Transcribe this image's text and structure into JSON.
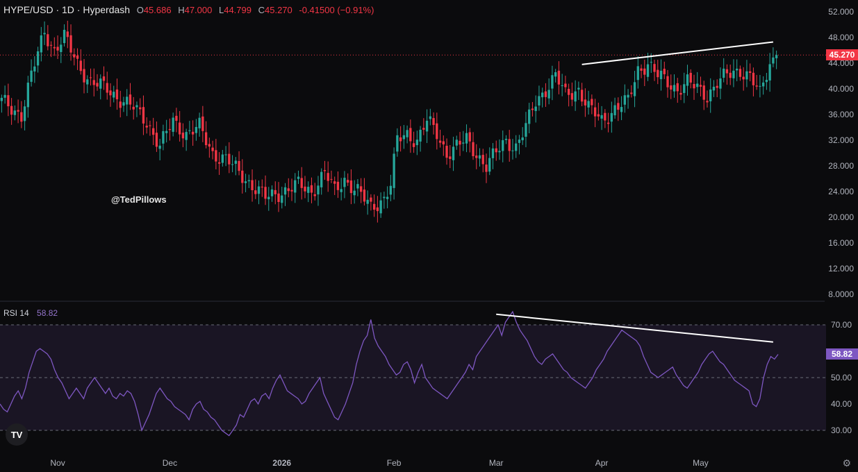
{
  "header": {
    "symbol": "HYPE/USD · 1D · Hyperdash",
    "o_label": "O",
    "o_value": "45.686",
    "h_label": "H",
    "h_value": "47.000",
    "l_label": "L",
    "l_value": "44.799",
    "c_label": "C",
    "c_value": "45.270",
    "change": "-0.41500 (−0.91%)"
  },
  "watermark": "@TedPillows",
  "rsi": {
    "label": "RSI 14",
    "value": "58.82"
  },
  "price_tag": "45.270",
  "rsi_tag": "58.82",
  "logo_text": "TV",
  "colors": {
    "background": "#0b0b0d",
    "up": "#26a69a",
    "down": "#f23645",
    "rsi_line": "#7e57c2",
    "rsi_band": "#1a1524",
    "trendline": "#ffffff"
  },
  "chart_data": [
    {
      "type": "candlestick",
      "title": "HYPE/USD · 1D · Hyperdash",
      "y_axis_ticks": [
        "52.000",
        "48.000",
        "44.000",
        "40.000",
        "36.000",
        "32.000",
        "28.000",
        "24.000",
        "20.000",
        "16.000",
        "12.000",
        "8.0000"
      ],
      "ylim": [
        7,
        53
      ],
      "x_axis_labels": [
        "Nov",
        "Dec",
        "2026",
        "Feb",
        "Mar",
        "Apr",
        "May"
      ],
      "last_price": 45.27,
      "close_path": [
        [
          0,
          38
        ],
        [
          6,
          36
        ],
        [
          9,
          42
        ],
        [
          13,
          49
        ],
        [
          16,
          46
        ],
        [
          19,
          48
        ],
        [
          23,
          44
        ],
        [
          27,
          41
        ],
        [
          32,
          40
        ],
        [
          37,
          38
        ],
        [
          40,
          37
        ],
        [
          44,
          35
        ],
        [
          48,
          31
        ],
        [
          52,
          35
        ],
        [
          56,
          33
        ],
        [
          60,
          34
        ],
        [
          64,
          30
        ],
        [
          68,
          29
        ],
        [
          72,
          27
        ],
        [
          76,
          25
        ],
        [
          80,
          23
        ],
        [
          85,
          24
        ],
        [
          90,
          25
        ],
        [
          94,
          24
        ],
        [
          98,
          27
        ],
        [
          101,
          24
        ],
        [
          104,
          26
        ],
        [
          108,
          24
        ],
        [
          112,
          21.5
        ],
        [
          116,
          23
        ],
        [
          118,
          25
        ],
        [
          120,
          32
        ],
        [
          123,
          33
        ],
        [
          126,
          32
        ],
        [
          129,
          35
        ],
        [
          132,
          33
        ],
        [
          135,
          30
        ],
        [
          138,
          31
        ],
        [
          141,
          32
        ],
        [
          144,
          30
        ],
        [
          147,
          28
        ],
        [
          150,
          30
        ],
        [
          153,
          32
        ],
        [
          156,
          31
        ],
        [
          159,
          34
        ],
        [
          162,
          38
        ],
        [
          165,
          40
        ],
        [
          168,
          42
        ],
        [
          171,
          39
        ],
        [
          175,
          40
        ],
        [
          178,
          37
        ],
        [
          182,
          35
        ],
        [
          186,
          37
        ],
        [
          190,
          38
        ],
        [
          193,
          43
        ],
        [
          196,
          44
        ],
        [
          199,
          42
        ],
        [
          202,
          41
        ],
        [
          205,
          40
        ],
        [
          208,
          41
        ],
        [
          211,
          40
        ],
        [
          214,
          39
        ],
        [
          217,
          41
        ],
        [
          220,
          42
        ],
        [
          224,
          43
        ],
        [
          227,
          42
        ],
        [
          230,
          39
        ],
        [
          233,
          44
        ],
        [
          235,
          45.27
        ]
      ],
      "annotations": [
        {
          "type": "trendline",
          "from": [
            176,
            43.8
          ],
          "to": [
            234,
            47.3
          ]
        }
      ]
    },
    {
      "type": "line",
      "title": "RSI 14",
      "y_axis_ticks": [
        "70.00",
        "50.00",
        "40.00",
        "30.00"
      ],
      "ylim": [
        27,
        77
      ],
      "bands": [
        30,
        50,
        70
      ],
      "last_value": 58.82,
      "series": [
        {
          "values": [
            40,
            38,
            37,
            40,
            43,
            45,
            42,
            46,
            52,
            56,
            60,
            61,
            60,
            59,
            57,
            53,
            50,
            48,
            45,
            42,
            44,
            46,
            44,
            42,
            46,
            48,
            50,
            48,
            46,
            44,
            46,
            43,
            42,
            44,
            43,
            45,
            44,
            41,
            36,
            30,
            33,
            36,
            40,
            44,
            46,
            44,
            42,
            41,
            39,
            38,
            37,
            36,
            34,
            38,
            40,
            41,
            38,
            37,
            35,
            34,
            32,
            30,
            29,
            28,
            30,
            32,
            36,
            35,
            38,
            41,
            42,
            40,
            43,
            44,
            42,
            46,
            49,
            51,
            48,
            45,
            44,
            43,
            42,
            40,
            41,
            44,
            46,
            48,
            50,
            44,
            41,
            38,
            35,
            34,
            37,
            40,
            44,
            48,
            55,
            60,
            64,
            66,
            72,
            65,
            62,
            60,
            58,
            55,
            53,
            51,
            52,
            55,
            56,
            53,
            48,
            52,
            55,
            50,
            48,
            46,
            45,
            44,
            43,
            42,
            44,
            46,
            48,
            50,
            52,
            55,
            53,
            58,
            60,
            62,
            64,
            66,
            68,
            70,
            66,
            71,
            73,
            75,
            71,
            68,
            66,
            64,
            61,
            58,
            56,
            55,
            57,
            58,
            59,
            57,
            55,
            53,
            52,
            50,
            49,
            48,
            47,
            46,
            48,
            50,
            53,
            55,
            57,
            60,
            62,
            64,
            66,
            68,
            67,
            66,
            65,
            64,
            62,
            58,
            55,
            52,
            51,
            50,
            51,
            52,
            53,
            54,
            51,
            49,
            47,
            46,
            48,
            50,
            52,
            55,
            57,
            59,
            60,
            58,
            56,
            55,
            53,
            51,
            49,
            48,
            47,
            46,
            45,
            40,
            39,
            42,
            50,
            55,
            58,
            57,
            58.82
          ]
        }
      ],
      "annotations": [
        {
          "type": "trendline",
          "from": [
            150,
            74
          ],
          "to": [
            234,
            63.5
          ]
        }
      ]
    }
  ]
}
